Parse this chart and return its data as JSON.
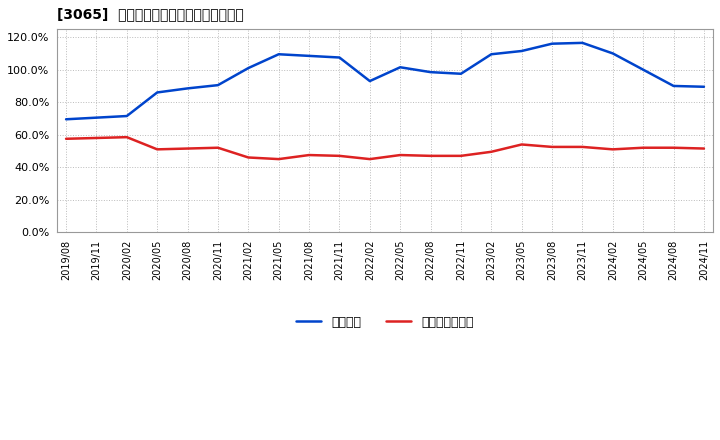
{
  "title": "[3065]  固定比率、固定長期適合率の推移",
  "dates": [
    "2019/08",
    "2019/11",
    "2020/02",
    "2020/05",
    "2020/08",
    "2020/11",
    "2021/02",
    "2021/05",
    "2021/08",
    "2021/11",
    "2022/02",
    "2022/05",
    "2022/08",
    "2022/11",
    "2023/02",
    "2023/05",
    "2023/08",
    "2023/11",
    "2024/02",
    "2024/05",
    "2024/08",
    "2024/11"
  ],
  "fixed_ratio": [
    69.5,
    70.5,
    71.5,
    86.0,
    88.5,
    90.5,
    101.0,
    109.5,
    108.5,
    107.5,
    93.0,
    101.5,
    98.5,
    97.5,
    109.5,
    111.5,
    116.0,
    116.5,
    110.0,
    100.0,
    90.0,
    89.5
  ],
  "fixed_longterm_ratio": [
    57.5,
    58.0,
    58.5,
    51.0,
    51.5,
    52.0,
    46.0,
    45.0,
    47.5,
    47.0,
    45.0,
    47.5,
    47.0,
    47.0,
    49.5,
    54.0,
    52.5,
    52.5,
    51.0,
    52.0,
    52.0,
    51.5
  ],
  "blue_color": "#0044CC",
  "red_color": "#DD2222",
  "background_color": "#FFFFFF",
  "plot_bg_color": "#FFFFFF",
  "grid_color": "#BBBBBB",
  "ylim": [
    0,
    125
  ],
  "yticks": [
    0,
    20,
    40,
    60,
    80,
    100,
    120
  ],
  "legend_fixed_ratio": "固定比率",
  "legend_fixed_longterm": "固定長期適合率"
}
